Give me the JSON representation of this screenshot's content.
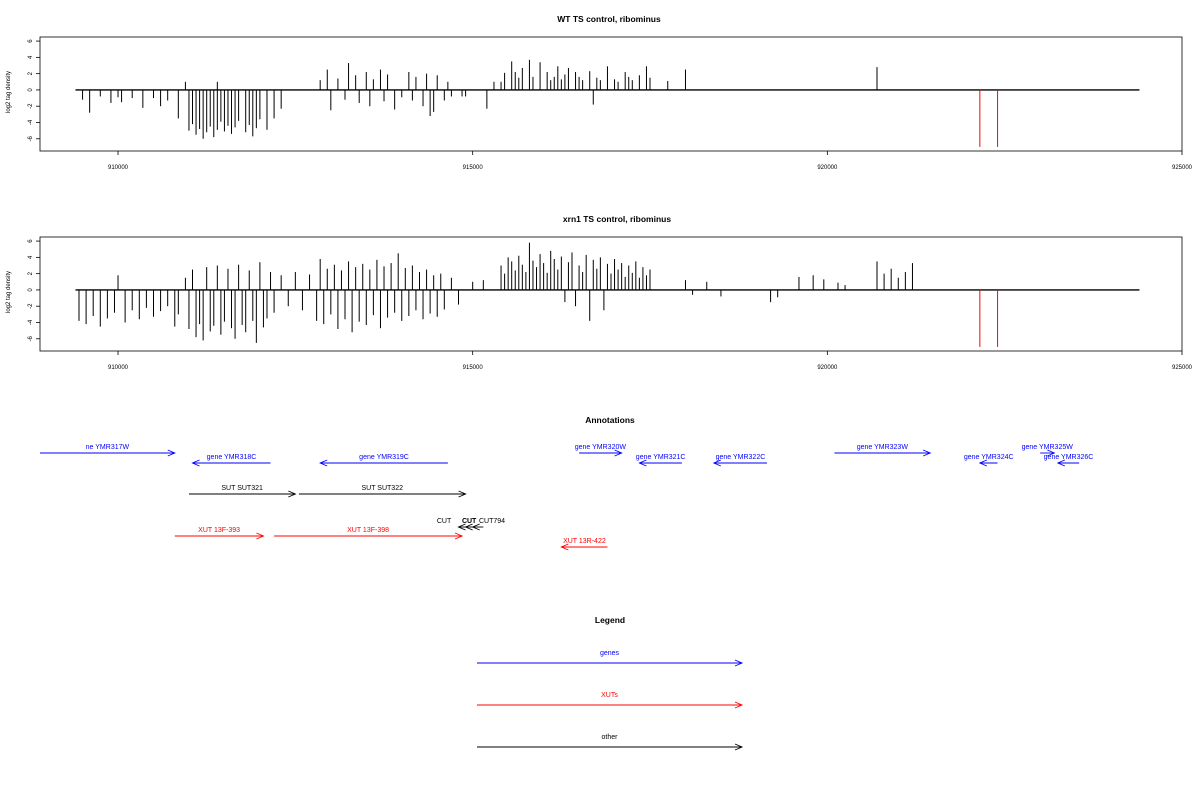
{
  "colors": {
    "gene": "#0000ff",
    "xut": "#ff0000",
    "other": "#000000",
    "bar": "#000000",
    "marker": "#ff0000"
  },
  "chart_data": [
    {
      "type": "bar",
      "title": "WT TS control, ribominus",
      "ylabel": "log2 tag density",
      "xlim": [
        908900,
        925000
      ],
      "ylim": [
        -7.5,
        6.5
      ],
      "x_ticks": [
        910000,
        915000,
        920000,
        925000
      ],
      "x_tick_labels": [
        "910000",
        "915000",
        "920000",
        "925000"
      ],
      "y_ticks": [
        -6,
        -4,
        -2,
        0,
        2,
        4,
        6
      ],
      "y_tick_labels": [
        "-6",
        "-4",
        "-2",
        "0",
        "2",
        "4",
        "6"
      ],
      "baseline": {
        "from": 909400,
        "to": 924400,
        "y": 0
      },
      "markers": [
        922150,
        922400
      ],
      "bars": [
        [
          909500,
          -1.2
        ],
        [
          909600,
          -2.8
        ],
        [
          909750,
          -0.8
        ],
        [
          909900,
          -1.6
        ],
        [
          910000,
          -0.9
        ],
        [
          910050,
          -1.5
        ],
        [
          910200,
          -1.0
        ],
        [
          910350,
          -2.2
        ],
        [
          910500,
          -1.0
        ],
        [
          910600,
          -2.0
        ],
        [
          910700,
          -1.3
        ],
        [
          910850,
          -3.5
        ],
        [
          910950,
          1.0
        ],
        [
          911000,
          -5.0
        ],
        [
          911050,
          -4.2
        ],
        [
          911100,
          -5.5
        ],
        [
          911150,
          -4.8
        ],
        [
          911200,
          -6.0
        ],
        [
          911250,
          -5.2
        ],
        [
          911300,
          -4.5
        ],
        [
          911350,
          -5.8
        ],
        [
          911400,
          -4.9
        ],
        [
          911450,
          -3.9
        ],
        [
          911500,
          -5.1
        ],
        [
          911550,
          -4.4
        ],
        [
          911600,
          -5.4
        ],
        [
          911650,
          -4.6
        ],
        [
          911700,
          -3.8
        ],
        [
          911800,
          -5.2
        ],
        [
          911850,
          -4.3
        ],
        [
          911900,
          -5.7
        ],
        [
          911950,
          -4.7
        ],
        [
          912000,
          -3.6
        ],
        [
          912100,
          -4.9
        ],
        [
          912200,
          -3.5
        ],
        [
          912300,
          -2.3
        ],
        [
          911400,
          1.0
        ],
        [
          912850,
          1.2
        ],
        [
          912950,
          2.5
        ],
        [
          913000,
          -2.5
        ],
        [
          913100,
          1.4
        ],
        [
          913200,
          -1.2
        ],
        [
          913250,
          3.3
        ],
        [
          913350,
          1.8
        ],
        [
          913400,
          -1.6
        ],
        [
          913500,
          2.2
        ],
        [
          913550,
          -2.0
        ],
        [
          913600,
          1.3
        ],
        [
          913700,
          2.5
        ],
        [
          913750,
          -1.4
        ],
        [
          913800,
          1.9
        ],
        [
          913900,
          -2.4
        ],
        [
          914000,
          -0.9
        ],
        [
          914100,
          2.2
        ],
        [
          914150,
          -1.3
        ],
        [
          914200,
          1.6
        ],
        [
          914300,
          -2.0
        ],
        [
          914350,
          2.0
        ],
        [
          914400,
          -3.2
        ],
        [
          914450,
          -2.7
        ],
        [
          914500,
          1.8
        ],
        [
          914600,
          -1.3
        ],
        [
          914650,
          1.0
        ],
        [
          914700,
          -0.8
        ],
        [
          914850,
          -0.8
        ],
        [
          914900,
          -0.8
        ],
        [
          915200,
          -2.3
        ],
        [
          915300,
          1.0
        ],
        [
          915400,
          1.0
        ],
        [
          915450,
          2.1
        ],
        [
          915550,
          3.5
        ],
        [
          915600,
          2.2
        ],
        [
          915650,
          1.5
        ],
        [
          915700,
          2.7
        ],
        [
          915800,
          3.7
        ],
        [
          915850,
          1.6
        ],
        [
          915950,
          3.4
        ],
        [
          916050,
          2.2
        ],
        [
          916100,
          1.2
        ],
        [
          916150,
          1.6
        ],
        [
          916200,
          2.9
        ],
        [
          916250,
          1.3
        ],
        [
          916300,
          1.9
        ],
        [
          916350,
          2.7
        ],
        [
          916450,
          2.2
        ],
        [
          916500,
          1.6
        ],
        [
          916550,
          1.2
        ],
        [
          916650,
          2.3
        ],
        [
          916700,
          -1.8
        ],
        [
          916750,
          1.5
        ],
        [
          916800,
          1.2
        ],
        [
          916900,
          2.9
        ],
        [
          917000,
          1.3
        ],
        [
          917050,
          1.0
        ],
        [
          917150,
          2.2
        ],
        [
          917200,
          1.6
        ],
        [
          917250,
          1.2
        ],
        [
          917350,
          1.8
        ],
        [
          917450,
          2.9
        ],
        [
          917500,
          1.5
        ],
        [
          917750,
          1.1
        ],
        [
          918000,
          2.5
        ],
        [
          920700,
          2.8
        ]
      ]
    },
    {
      "type": "bar",
      "title": "xrn1 TS control, ribominus",
      "ylabel": "log2 tag density",
      "xlim": [
        908900,
        925000
      ],
      "ylim": [
        -7.5,
        6.5
      ],
      "x_ticks": [
        910000,
        915000,
        920000,
        925000
      ],
      "x_tick_labels": [
        "910000",
        "915000",
        "920000",
        "925000"
      ],
      "y_ticks": [
        -6,
        -4,
        -2,
        0,
        2,
        4,
        6
      ],
      "y_tick_labels": [
        "-6",
        "-4",
        "-2",
        "0",
        "2",
        "4",
        "6"
      ],
      "baseline": {
        "from": 909400,
        "to": 924400,
        "y": 0
      },
      "markers": [
        922150,
        922400
      ],
      "bars": [
        [
          909450,
          -3.8
        ],
        [
          909550,
          -4.2
        ],
        [
          909650,
          -3.2
        ],
        [
          909750,
          -4.5
        ],
        [
          909850,
          -3.5
        ],
        [
          909950,
          -2.8
        ],
        [
          910000,
          1.8
        ],
        [
          910100,
          -4.0
        ],
        [
          910200,
          -2.5
        ],
        [
          910300,
          -3.6
        ],
        [
          910400,
          -2.2
        ],
        [
          910500,
          -3.3
        ],
        [
          910600,
          -2.6
        ],
        [
          910700,
          -2.0
        ],
        [
          910800,
          -4.5
        ],
        [
          910850,
          -3.0
        ],
        [
          910950,
          1.5
        ],
        [
          911000,
          -4.8
        ],
        [
          911050,
          2.5
        ],
        [
          911100,
          -5.8
        ],
        [
          911150,
          -4.2
        ],
        [
          911200,
          -6.2
        ],
        [
          911250,
          2.8
        ],
        [
          911300,
          -5.1
        ],
        [
          911350,
          -4.4
        ],
        [
          911400,
          3.0
        ],
        [
          911450,
          -5.5
        ],
        [
          911500,
          -3.9
        ],
        [
          911550,
          2.6
        ],
        [
          911600,
          -4.7
        ],
        [
          911650,
          -6.0
        ],
        [
          911700,
          3.1
        ],
        [
          911750,
          -4.3
        ],
        [
          911800,
          -5.2
        ],
        [
          911850,
          2.4
        ],
        [
          911900,
          -3.8
        ],
        [
          911950,
          -6.5
        ],
        [
          912000,
          3.4
        ],
        [
          912050,
          -4.6
        ],
        [
          912100,
          -3.5
        ],
        [
          912150,
          2.2
        ],
        [
          912200,
          -2.8
        ],
        [
          912300,
          1.8
        ],
        [
          912400,
          -2.0
        ],
        [
          912500,
          2.2
        ],
        [
          912600,
          -2.5
        ],
        [
          912700,
          1.9
        ],
        [
          912800,
          -3.8
        ],
        [
          912850,
          3.8
        ],
        [
          912900,
          -4.2
        ],
        [
          912950,
          2.6
        ],
        [
          913000,
          -3.0
        ],
        [
          913050,
          3.1
        ],
        [
          913100,
          -4.8
        ],
        [
          913150,
          2.4
        ],
        [
          913200,
          -3.6
        ],
        [
          913250,
          3.5
        ],
        [
          913300,
          -5.2
        ],
        [
          913350,
          2.8
        ],
        [
          913400,
          -3.9
        ],
        [
          913450,
          3.2
        ],
        [
          913500,
          -4.3
        ],
        [
          913550,
          2.5
        ],
        [
          913600,
          -3.1
        ],
        [
          913650,
          3.7
        ],
        [
          913700,
          -4.7
        ],
        [
          913750,
          2.9
        ],
        [
          913800,
          -3.4
        ],
        [
          913850,
          3.3
        ],
        [
          913900,
          -2.8
        ],
        [
          913950,
          4.5
        ],
        [
          914000,
          -3.8
        ],
        [
          914050,
          2.7
        ],
        [
          914100,
          -3.2
        ],
        [
          914150,
          3.0
        ],
        [
          914200,
          -2.5
        ],
        [
          914250,
          2.2
        ],
        [
          914300,
          -3.6
        ],
        [
          914350,
          2.5
        ],
        [
          914400,
          -2.9
        ],
        [
          914450,
          1.8
        ],
        [
          914500,
          -3.3
        ],
        [
          914550,
          2.0
        ],
        [
          914600,
          -2.4
        ],
        [
          914700,
          1.5
        ],
        [
          914800,
          -1.8
        ],
        [
          915000,
          1.0
        ],
        [
          915150,
          1.2
        ],
        [
          915400,
          3.0
        ],
        [
          915450,
          2.0
        ],
        [
          915500,
          4.0
        ],
        [
          915550,
          3.5
        ],
        [
          915600,
          2.4
        ],
        [
          915650,
          4.2
        ],
        [
          915700,
          3.1
        ],
        [
          915750,
          2.2
        ],
        [
          915800,
          5.8
        ],
        [
          915850,
          3.6
        ],
        [
          915900,
          2.8
        ],
        [
          915950,
          4.4
        ],
        [
          916000,
          3.3
        ],
        [
          916050,
          2.1
        ],
        [
          916100,
          4.8
        ],
        [
          916150,
          3.8
        ],
        [
          916200,
          2.5
        ],
        [
          916250,
          4.1
        ],
        [
          916300,
          -1.5
        ],
        [
          916350,
          3.4
        ],
        [
          916400,
          4.6
        ],
        [
          916450,
          -2.0
        ],
        [
          916500,
          3.0
        ],
        [
          916550,
          2.2
        ],
        [
          916600,
          4.3
        ],
        [
          916650,
          -3.8
        ],
        [
          916700,
          3.7
        ],
        [
          916750,
          2.6
        ],
        [
          916800,
          4.0
        ],
        [
          916850,
          -2.5
        ],
        [
          916900,
          3.2
        ],
        [
          916950,
          2.0
        ],
        [
          917000,
          3.8
        ],
        [
          917050,
          2.5
        ],
        [
          917100,
          3.3
        ],
        [
          917150,
          1.6
        ],
        [
          917200,
          3.0
        ],
        [
          917250,
          2.1
        ],
        [
          917300,
          3.5
        ],
        [
          917350,
          1.5
        ],
        [
          917400,
          2.8
        ],
        [
          917450,
          1.8
        ],
        [
          917500,
          2.5
        ],
        [
          918000,
          1.2
        ],
        [
          918100,
          -0.6
        ],
        [
          918300,
          1.0
        ],
        [
          918500,
          -0.8
        ],
        [
          919200,
          -1.5
        ],
        [
          919300,
          -0.9
        ],
        [
          919600,
          1.6
        ],
        [
          919800,
          1.8
        ],
        [
          919950,
          1.3
        ],
        [
          920150,
          0.9
        ],
        [
          920250,
          0.6
        ],
        [
          920700,
          3.5
        ],
        [
          920800,
          2.0
        ],
        [
          920900,
          2.6
        ],
        [
          921000,
          1.5
        ],
        [
          921100,
          2.2
        ],
        [
          921200,
          3.3
        ]
      ]
    }
  ],
  "annotations": {
    "title": "Annotations",
    "track_xlim": [
      908900,
      925000
    ],
    "features": [
      {
        "label": "ne YMR317W",
        "kind": "gene",
        "start": 908900,
        "end": 910800,
        "strand": "+",
        "row": 1
      },
      {
        "label": "gene YMR318C",
        "kind": "gene",
        "start": 911050,
        "end": 912150,
        "strand": "-",
        "row": 2
      },
      {
        "label": "gene YMR319C",
        "kind": "gene",
        "start": 912850,
        "end": 914650,
        "strand": "-",
        "row": 2
      },
      {
        "label": "gene YMR320W",
        "kind": "gene",
        "start": 916500,
        "end": 917100,
        "strand": "+",
        "row": 1
      },
      {
        "label": "gene YMR321C",
        "kind": "gene",
        "start": 917350,
        "end": 917950,
        "strand": "-",
        "row": 2
      },
      {
        "label": "gene YMR322C",
        "kind": "gene",
        "start": 918400,
        "end": 919150,
        "strand": "-",
        "row": 2
      },
      {
        "label": "gene YMR323W",
        "kind": "gene",
        "start": 920100,
        "end": 921450,
        "strand": "+",
        "row": 1
      },
      {
        "label": "gene YMR324C",
        "kind": "gene",
        "start": 922150,
        "end": 922400,
        "strand": "-",
        "row": 2
      },
      {
        "label": "gene YMR325W",
        "kind": "gene",
        "start": 923000,
        "end": 923200,
        "strand": "+",
        "row": 1
      },
      {
        "label": "gene YMR326C",
        "kind": "gene",
        "start": 923250,
        "end": 923550,
        "strand": "-",
        "row": 2
      },
      {
        "label": "SUT SUT321",
        "kind": "other",
        "start": 911000,
        "end": 912500,
        "strand": "+",
        "row": 3
      },
      {
        "label": "SUT SUT322",
        "kind": "other",
        "start": 912550,
        "end": 914900,
        "strand": "+",
        "row": 3
      },
      {
        "label": "CUT",
        "kind": "other",
        "start": 914800,
        "end": 914900,
        "strand": "-",
        "row": 4,
        "label_dx": -18
      },
      {
        "label": "CUT",
        "kind": "other",
        "start": 914900,
        "end": 915000,
        "strand": "-",
        "row": 4,
        "label_dx": 0,
        "bold": true
      },
      {
        "label": "CUT794",
        "kind": "other",
        "start": 915000,
        "end": 915150,
        "strand": "-",
        "row": 4,
        "label_dx": 14
      },
      {
        "label": "XUT 13F-393",
        "kind": "xut",
        "start": 910800,
        "end": 912050,
        "strand": "+",
        "row": 5
      },
      {
        "label": "XUT 13F-398",
        "kind": "xut",
        "start": 912200,
        "end": 914850,
        "strand": "+",
        "row": 5
      },
      {
        "label": "XUT 13R-422",
        "kind": "xut",
        "start": 916250,
        "end": 916900,
        "strand": "-",
        "row": 6
      }
    ]
  },
  "legend": {
    "title": "Legend",
    "items": [
      {
        "label": "genes",
        "kind": "gene"
      },
      {
        "label": "XUTs",
        "kind": "xut"
      },
      {
        "label": "other",
        "kind": "other"
      }
    ]
  }
}
